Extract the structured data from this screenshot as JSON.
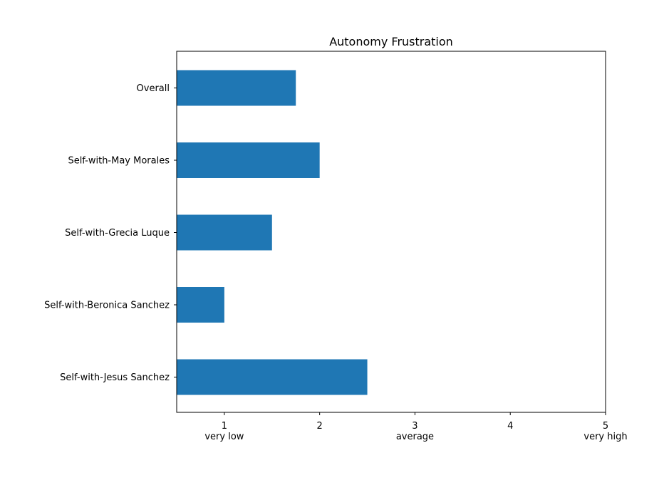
{
  "chart_data": {
    "type": "bar",
    "orientation": "horizontal",
    "title": "Autonomy Frustration",
    "xlabel": "",
    "ylabel": "",
    "categories": [
      "Overall",
      "Self-with-May Morales",
      "Self-with-Grecia Luque",
      "Self-with-Beronica Sanchez",
      "Self-with-Jesus Sanchez"
    ],
    "values": [
      1.75,
      2.0,
      1.5,
      1.0,
      2.5
    ],
    "xlim": [
      0.5,
      5
    ],
    "xticks": [
      1,
      2,
      3,
      4,
      5
    ],
    "xtick_sublabels": [
      "very low",
      "",
      "average",
      "",
      "very high"
    ],
    "bar_color": "#1f77b4",
    "grid": false,
    "legend": "none"
  }
}
